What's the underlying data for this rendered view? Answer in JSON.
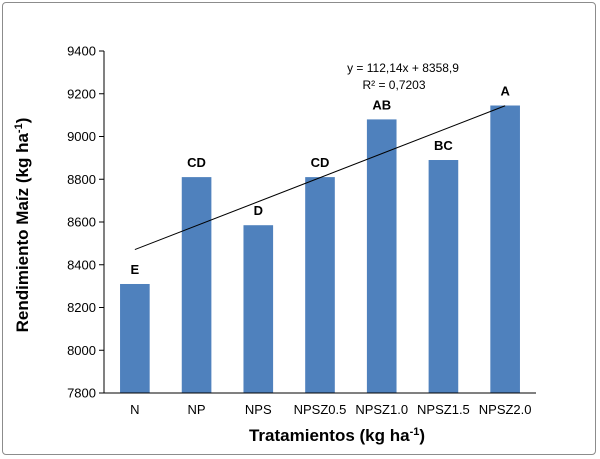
{
  "chart_data": {
    "type": "bar",
    "categories": [
      "N",
      "NP",
      "NPS",
      "NPSZ0.5",
      "NPSZ1.0",
      "NPSZ1.5",
      "NPSZ2.0"
    ],
    "values": [
      8310,
      8810,
      8585,
      8810,
      9080,
      8890,
      9145
    ],
    "significance_letters": [
      "E",
      "CD",
      "D",
      "CD",
      "AB",
      "BC",
      "A"
    ],
    "ylabel": "Rendimiento Maíz  (kg ha",
    "ylabel_superscript": "-1",
    "ylabel_close": ")",
    "xlabel": "Tratamientos  (kg ha",
    "xlabel_superscript": "-1",
    "xlabel_close": ")",
    "ylim": [
      7800,
      9400
    ],
    "yticks": [
      7800,
      8000,
      8200,
      8400,
      8600,
      8800,
      9000,
      9200,
      9400
    ],
    "trendline": {
      "type": "linear",
      "slope": 112.14,
      "intercept": 8358.9,
      "equation": "y = 112,14x + 8358,9",
      "r2": "R² = 0,7203"
    },
    "bar_color": "#4f81bd",
    "grid": false,
    "legend": "none"
  }
}
